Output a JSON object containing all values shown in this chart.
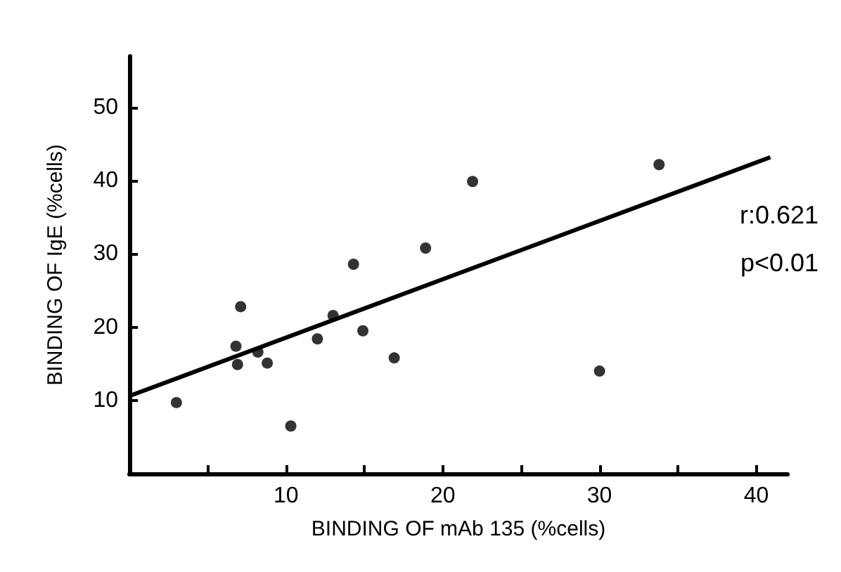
{
  "chart_data": {
    "type": "scatter",
    "xlabel": "BINDING OF mAb 135 (%cells)",
    "ylabel": "BINDING OF IgE (%cells)",
    "xlim": [
      0,
      42
    ],
    "xticks": [
      {
        "value": 5,
        "label": null
      },
      10,
      {
        "value": 15,
        "label": null
      },
      20,
      {
        "value": 25,
        "label": null
      },
      30,
      {
        "value": 35,
        "label": null
      },
      40
    ],
    "ylim": [
      0,
      57
    ],
    "yticks": [
      10,
      20,
      30,
      40,
      50
    ],
    "grid": false,
    "marker": "circle",
    "annotations": [
      "r:0.621",
      "p<0.01"
    ],
    "series": [
      {
        "color": "#000000",
        "x": [
          3.0,
          7.1,
          6.8,
          6.9,
          8.2,
          8.8,
          10.3,
          12.0,
          13.0,
          14.3,
          14.9,
          16.9,
          18.9,
          21.9,
          30.0,
          33.8
        ],
        "values": [
          9.7,
          22.8,
          17.4,
          14.9,
          16.6,
          15.1,
          6.5,
          18.4,
          21.6,
          28.6,
          19.5,
          15.8,
          30.8,
          39.9,
          14.0,
          42.2
        ]
      },
      {
        "type": "line",
        "color": "#000000",
        "x": [
          0,
          40.9
        ],
        "values": [
          10.6,
          43.2
        ],
        "marker": "none",
        "line_style": "solid"
      }
    ]
  }
}
